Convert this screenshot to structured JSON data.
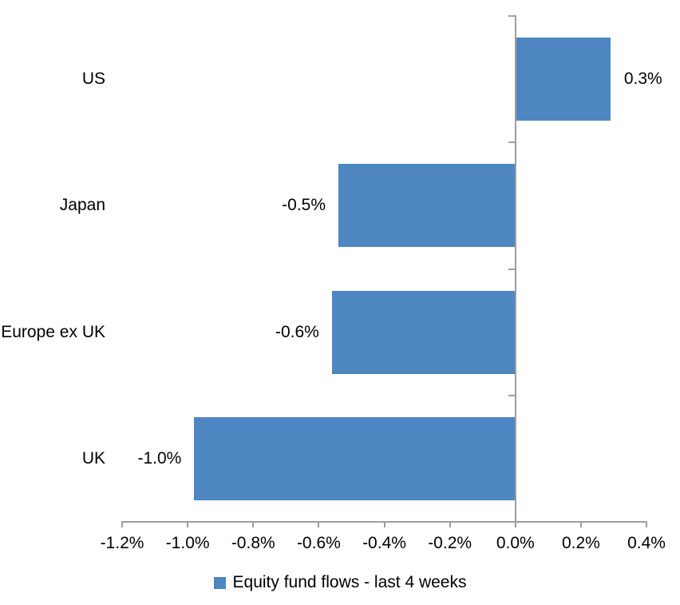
{
  "chart_data": {
    "type": "bar",
    "orientation": "horizontal",
    "title": "",
    "xlabel": "",
    "ylabel": "",
    "categories": [
      "US",
      "Japan",
      "Europe ex UK",
      "UK"
    ],
    "values": [
      0.3,
      -0.5,
      -0.6,
      -1.0
    ],
    "value_labels": [
      "0.3%",
      "-0.5%",
      "-0.6%",
      "-1.0%"
    ],
    "plotted_values": [
      0.29,
      -0.54,
      -0.56,
      -0.98
    ],
    "unit": "%",
    "xlim": [
      -1.2,
      0.4
    ],
    "x_ticks": [
      -1.2,
      -1.0,
      -0.8,
      -0.6,
      -0.4,
      -0.2,
      0.0,
      0.2,
      0.4
    ],
    "x_tick_labels": [
      "-1.2%",
      "-1.0%",
      "-0.8%",
      "-0.6%",
      "-0.4%",
      "-0.2%",
      "0.0%",
      "0.2%",
      "0.4%"
    ],
    "grid": false,
    "legend_position": "bottom",
    "legend": [
      "Equity fund flows - last 4 weeks"
    ]
  },
  "colors": {
    "bar": "#4E86C1",
    "axis": "#9E9E9E",
    "text": "#000000",
    "background": "#FFFFFF"
  }
}
